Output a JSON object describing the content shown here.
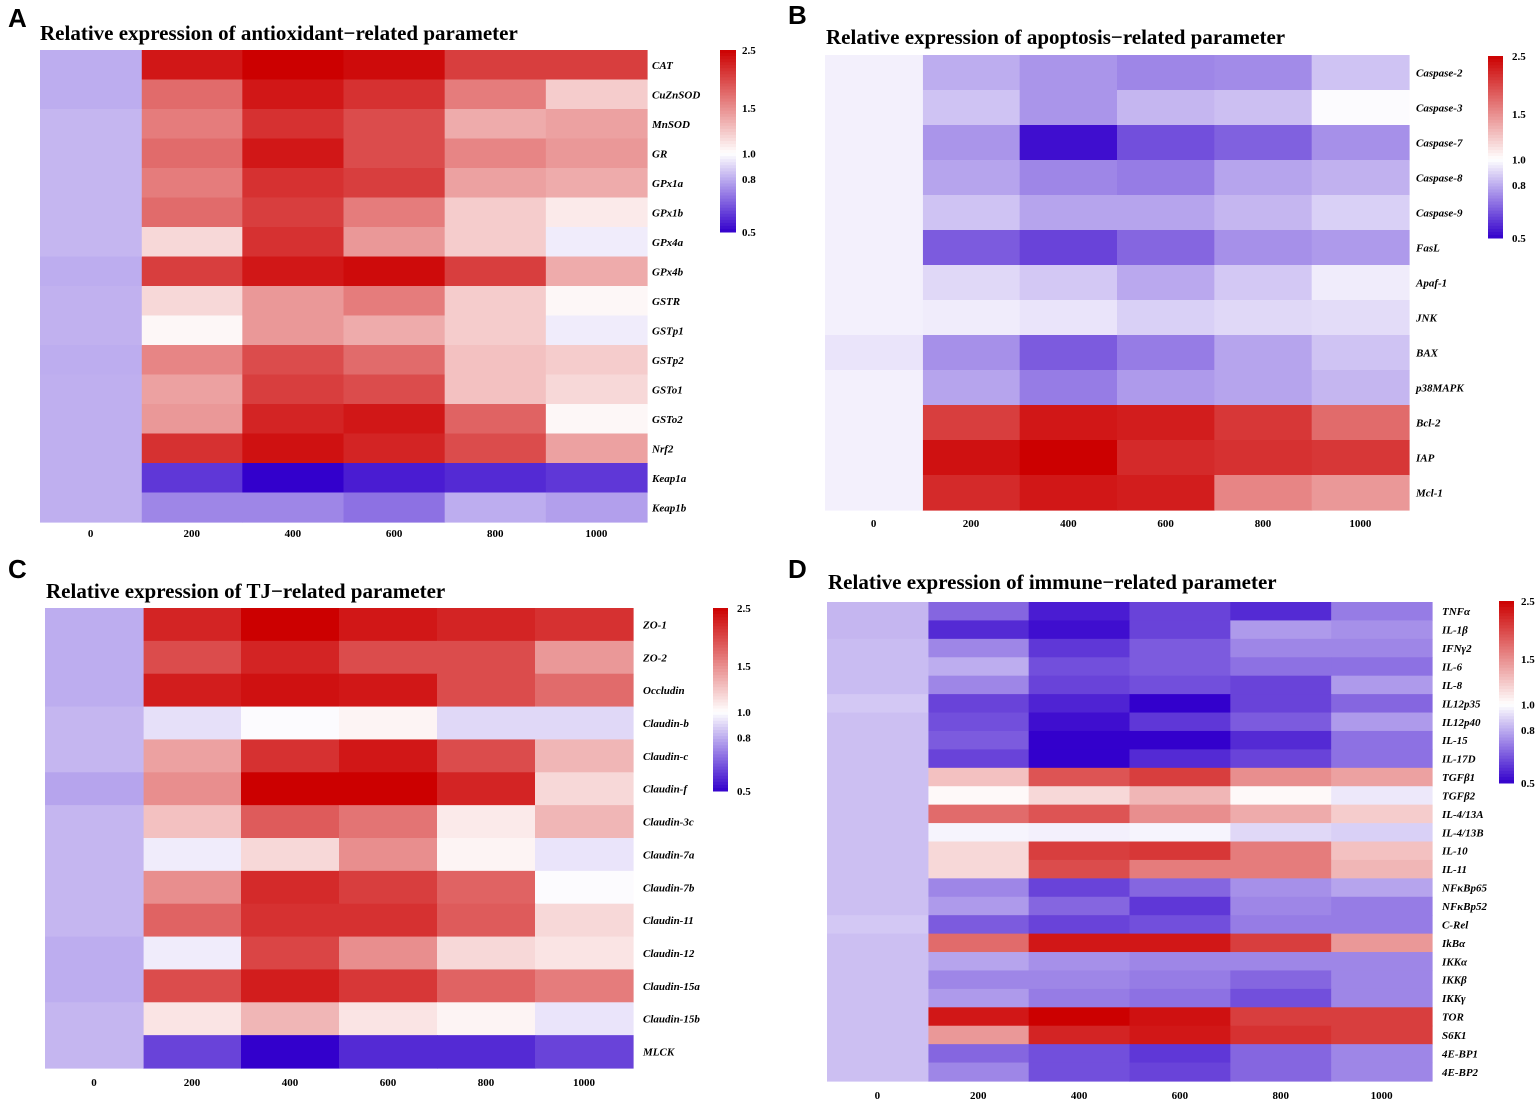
{
  "colors": {
    "low": "#3300CC",
    "mid": "#FFFFFF",
    "high": "#CC0000"
  },
  "chart_data": [
    {
      "type": "heatmap",
      "panel_label": "A",
      "title": "Relative expression of antioxidant−related parameter",
      "columns": [
        "0",
        "200",
        "400",
        "600",
        "800",
        "1000"
      ],
      "rows": [
        "CAT",
        "CuZnSOD",
        "MnSOD",
        "GR",
        "GPx1a",
        "GPx1b",
        "GPx4a",
        "GPx4b",
        "GSTR",
        "GSTp1",
        "GSTp2",
        "GSTo1",
        "GSTo2",
        "Nrf2",
        "Keap1a",
        "Keap1b"
      ],
      "row_group_sizes": [
        2,
        5,
        1,
        2,
        1,
        5
      ],
      "values": [
        [
          0.8,
          2.3,
          2.5,
          2.4,
          2.0,
          2.0
        ],
        [
          0.8,
          1.7,
          2.3,
          2.1,
          1.6,
          1.2
        ],
        [
          0.82,
          1.6,
          2.1,
          1.9,
          1.35,
          1.4
        ],
        [
          0.82,
          1.7,
          2.3,
          1.9,
          1.55,
          1.45
        ],
        [
          0.82,
          1.6,
          2.1,
          2.0,
          1.4,
          1.35
        ],
        [
          0.82,
          1.7,
          2.0,
          1.6,
          1.2,
          1.08
        ],
        [
          0.82,
          1.15,
          2.1,
          1.45,
          1.2,
          0.95
        ],
        [
          0.8,
          2.0,
          2.3,
          2.4,
          2.0,
          1.35
        ],
        [
          0.8,
          1.15,
          1.45,
          1.6,
          1.2,
          1.03
        ],
        [
          0.82,
          1.03,
          1.45,
          1.35,
          1.2,
          0.95
        ],
        [
          0.8,
          1.55,
          1.9,
          1.7,
          1.25,
          1.2
        ],
        [
          0.82,
          1.4,
          2.0,
          1.9,
          1.25,
          1.15
        ],
        [
          0.8,
          1.45,
          2.2,
          2.3,
          1.75,
          1.03
        ],
        [
          0.8,
          2.1,
          2.35,
          2.2,
          1.9,
          1.4
        ],
        [
          0.8,
          0.58,
          0.5,
          0.54,
          0.56,
          0.58
        ],
        [
          0.8,
          0.72,
          0.72,
          0.68,
          0.8,
          0.77
        ]
      ],
      "colorbar": {
        "ticks": [
          2.5,
          1.5,
          1.0,
          0.8,
          0.5
        ]
      }
    },
    {
      "type": "heatmap",
      "panel_label": "B",
      "title": "Relative expression of apoptosis−related parameter",
      "columns": [
        "0",
        "200",
        "400",
        "600",
        "800",
        "1000"
      ],
      "rows": [
        "Caspase-2",
        "Caspase-3",
        "Caspase-7",
        "Caspase-8",
        "Caspase-9",
        "FasL",
        "Apaf-1",
        "JNK",
        "BAX",
        "p38MAPK",
        "Bcl-2",
        "IAP",
        "Mcl-1"
      ],
      "row_group_sizes": [
        8,
        1,
        4
      ],
      "values": [
        [
          0.96,
          0.8,
          0.75,
          0.72,
          0.73,
          0.85
        ],
        [
          0.96,
          0.85,
          0.75,
          0.82,
          0.84,
          0.99
        ],
        [
          0.96,
          0.75,
          0.52,
          0.62,
          0.65,
          0.74
        ],
        [
          0.96,
          0.78,
          0.72,
          0.7,
          0.78,
          0.81
        ],
        [
          0.96,
          0.85,
          0.78,
          0.78,
          0.82,
          0.88
        ],
        [
          0.96,
          0.64,
          0.6,
          0.66,
          0.74,
          0.76
        ],
        [
          0.96,
          0.9,
          0.86,
          0.79,
          0.86,
          0.95
        ],
        [
          0.96,
          0.95,
          0.93,
          0.88,
          0.9,
          0.91
        ],
        [
          0.93,
          0.74,
          0.64,
          0.7,
          0.78,
          0.85
        ],
        [
          0.96,
          0.78,
          0.7,
          0.76,
          0.78,
          0.82
        ],
        [
          0.96,
          2.0,
          2.3,
          2.25,
          2.05,
          1.7
        ],
        [
          0.96,
          2.35,
          2.5,
          2.15,
          2.1,
          2.05
        ],
        [
          0.96,
          2.15,
          2.3,
          2.25,
          1.55,
          1.45
        ]
      ],
      "colorbar": {
        "ticks": [
          2.5,
          1.5,
          1.0,
          0.8,
          0.5
        ]
      }
    },
    {
      "type": "heatmap",
      "panel_label": "C",
      "title": "Relative expression of TJ−related parameter",
      "columns": [
        "0",
        "200",
        "400",
        "600",
        "800",
        "1000"
      ],
      "rows": [
        "ZO-1",
        "ZO-2",
        "Occludin",
        "Claudin-b",
        "Claudin-c",
        "Claudin-f",
        "Claudin-3c",
        "Claudin-7a",
        "Claudin-7b",
        "Claudin-11",
        "Claudin-12",
        "Claudin-15a",
        "Claudin-15b",
        "MLCK"
      ],
      "row_group_sizes": [
        3,
        2,
        1,
        4,
        1,
        1,
        2
      ],
      "values": [
        [
          0.8,
          2.2,
          2.5,
          2.3,
          2.2,
          2.1
        ],
        [
          0.8,
          1.9,
          2.2,
          1.9,
          1.9,
          1.45
        ],
        [
          0.8,
          2.25,
          2.35,
          2.3,
          1.9,
          1.7
        ],
        [
          0.82,
          0.92,
          0.99,
          1.04,
          0.9,
          0.9
        ],
        [
          0.82,
          1.4,
          2.1,
          2.3,
          1.9,
          1.3
        ],
        [
          0.78,
          1.5,
          2.5,
          2.5,
          2.2,
          1.15
        ],
        [
          0.82,
          1.25,
          1.8,
          1.65,
          1.08,
          1.3
        ],
        [
          0.82,
          0.95,
          1.15,
          1.5,
          1.04,
          0.93
        ],
        [
          0.82,
          1.5,
          2.15,
          2.0,
          1.75,
          0.99
        ],
        [
          0.82,
          1.75,
          2.1,
          2.1,
          1.8,
          1.15
        ],
        [
          0.8,
          0.95,
          1.95,
          1.5,
          1.15,
          1.1
        ],
        [
          0.8,
          1.9,
          2.25,
          2.05,
          1.75,
          1.6
        ],
        [
          0.82,
          1.1,
          1.3,
          1.1,
          1.04,
          0.93
        ],
        [
          0.82,
          0.6,
          0.5,
          0.56,
          0.56,
          0.6
        ]
      ],
      "colorbar": {
        "ticks": [
          2.5,
          1.5,
          1.0,
          0.8,
          0.5
        ]
      }
    },
    {
      "type": "heatmap",
      "panel_label": "D",
      "title": "Relative expression of immune−related parameter",
      "columns": [
        "0",
        "200",
        "400",
        "600",
        "800",
        "1000"
      ],
      "rows": [
        "TNFα",
        "IL-1β",
        "IFNγ2",
        "IL-6",
        "IL-8",
        "IL12p35",
        "IL12p40",
        "IL-15",
        "IL-17D",
        "TGFβ1",
        "TGFβ2",
        "IL-4/13A",
        "IL-4/13B",
        "IL-10",
        "IL-11",
        "NFκBp65",
        "NFκBp52",
        "C-Rel",
        "IkBα",
        "IKKα",
        "IKKβ",
        "IKKγ",
        "TOR",
        "S6K1",
        "4E-BP1",
        "4E-BP2"
      ],
      "row_group_sizes": [
        1,
        1,
        3,
        1,
        11,
        1,
        8
      ],
      "values": [
        [
          0.82,
          0.66,
          0.54,
          0.6,
          0.56,
          0.7
        ],
        [
          0.82,
          0.56,
          0.52,
          0.6,
          0.76,
          0.74
        ],
        [
          0.82,
          0.72,
          0.58,
          0.64,
          0.72,
          0.72
        ],
        [
          0.84,
          0.8,
          0.62,
          0.64,
          0.68,
          0.68
        ],
        [
          0.84,
          0.72,
          0.6,
          0.62,
          0.6,
          0.76
        ],
        [
          0.86,
          0.6,
          0.55,
          0.5,
          0.6,
          0.66
        ],
        [
          0.84,
          0.62,
          0.52,
          0.58,
          0.64,
          0.76
        ],
        [
          0.84,
          0.64,
          0.5,
          0.5,
          0.56,
          0.68
        ],
        [
          0.84,
          0.6,
          0.5,
          0.56,
          0.6,
          0.68
        ],
        [
          0.84,
          1.25,
          1.85,
          2.0,
          1.5,
          1.4
        ],
        [
          0.84,
          1.02,
          1.15,
          1.3,
          1.02,
          0.94
        ],
        [
          0.84,
          1.7,
          1.85,
          1.5,
          1.35,
          1.2
        ],
        [
          0.84,
          0.97,
          0.96,
          0.97,
          0.9,
          0.88
        ],
        [
          0.84,
          1.15,
          2.0,
          2.05,
          1.6,
          1.25
        ],
        [
          0.84,
          1.15,
          1.9,
          1.6,
          1.6,
          1.3
        ],
        [
          0.84,
          0.72,
          0.6,
          0.66,
          0.74,
          0.78
        ],
        [
          0.84,
          0.76,
          0.66,
          0.58,
          0.72,
          0.7
        ],
        [
          0.86,
          0.64,
          0.6,
          0.62,
          0.7,
          0.7
        ],
        [
          0.84,
          1.7,
          2.3,
          2.3,
          2.0,
          1.45
        ],
        [
          0.84,
          0.78,
          0.74,
          0.72,
          0.72,
          0.72
        ],
        [
          0.84,
          0.72,
          0.72,
          0.7,
          0.66,
          0.72
        ],
        [
          0.84,
          0.76,
          0.7,
          0.68,
          0.62,
          0.72
        ],
        [
          0.84,
          2.3,
          2.5,
          2.35,
          2.0,
          2.0
        ],
        [
          0.84,
          1.45,
          2.2,
          2.3,
          2.1,
          2.0
        ],
        [
          0.84,
          0.66,
          0.62,
          0.58,
          0.66,
          0.72
        ],
        [
          0.84,
          0.72,
          0.62,
          0.6,
          0.66,
          0.72
        ]
      ],
      "colorbar": {
        "ticks": [
          2.5,
          1.5,
          1.0,
          0.8,
          0.5
        ]
      }
    }
  ]
}
